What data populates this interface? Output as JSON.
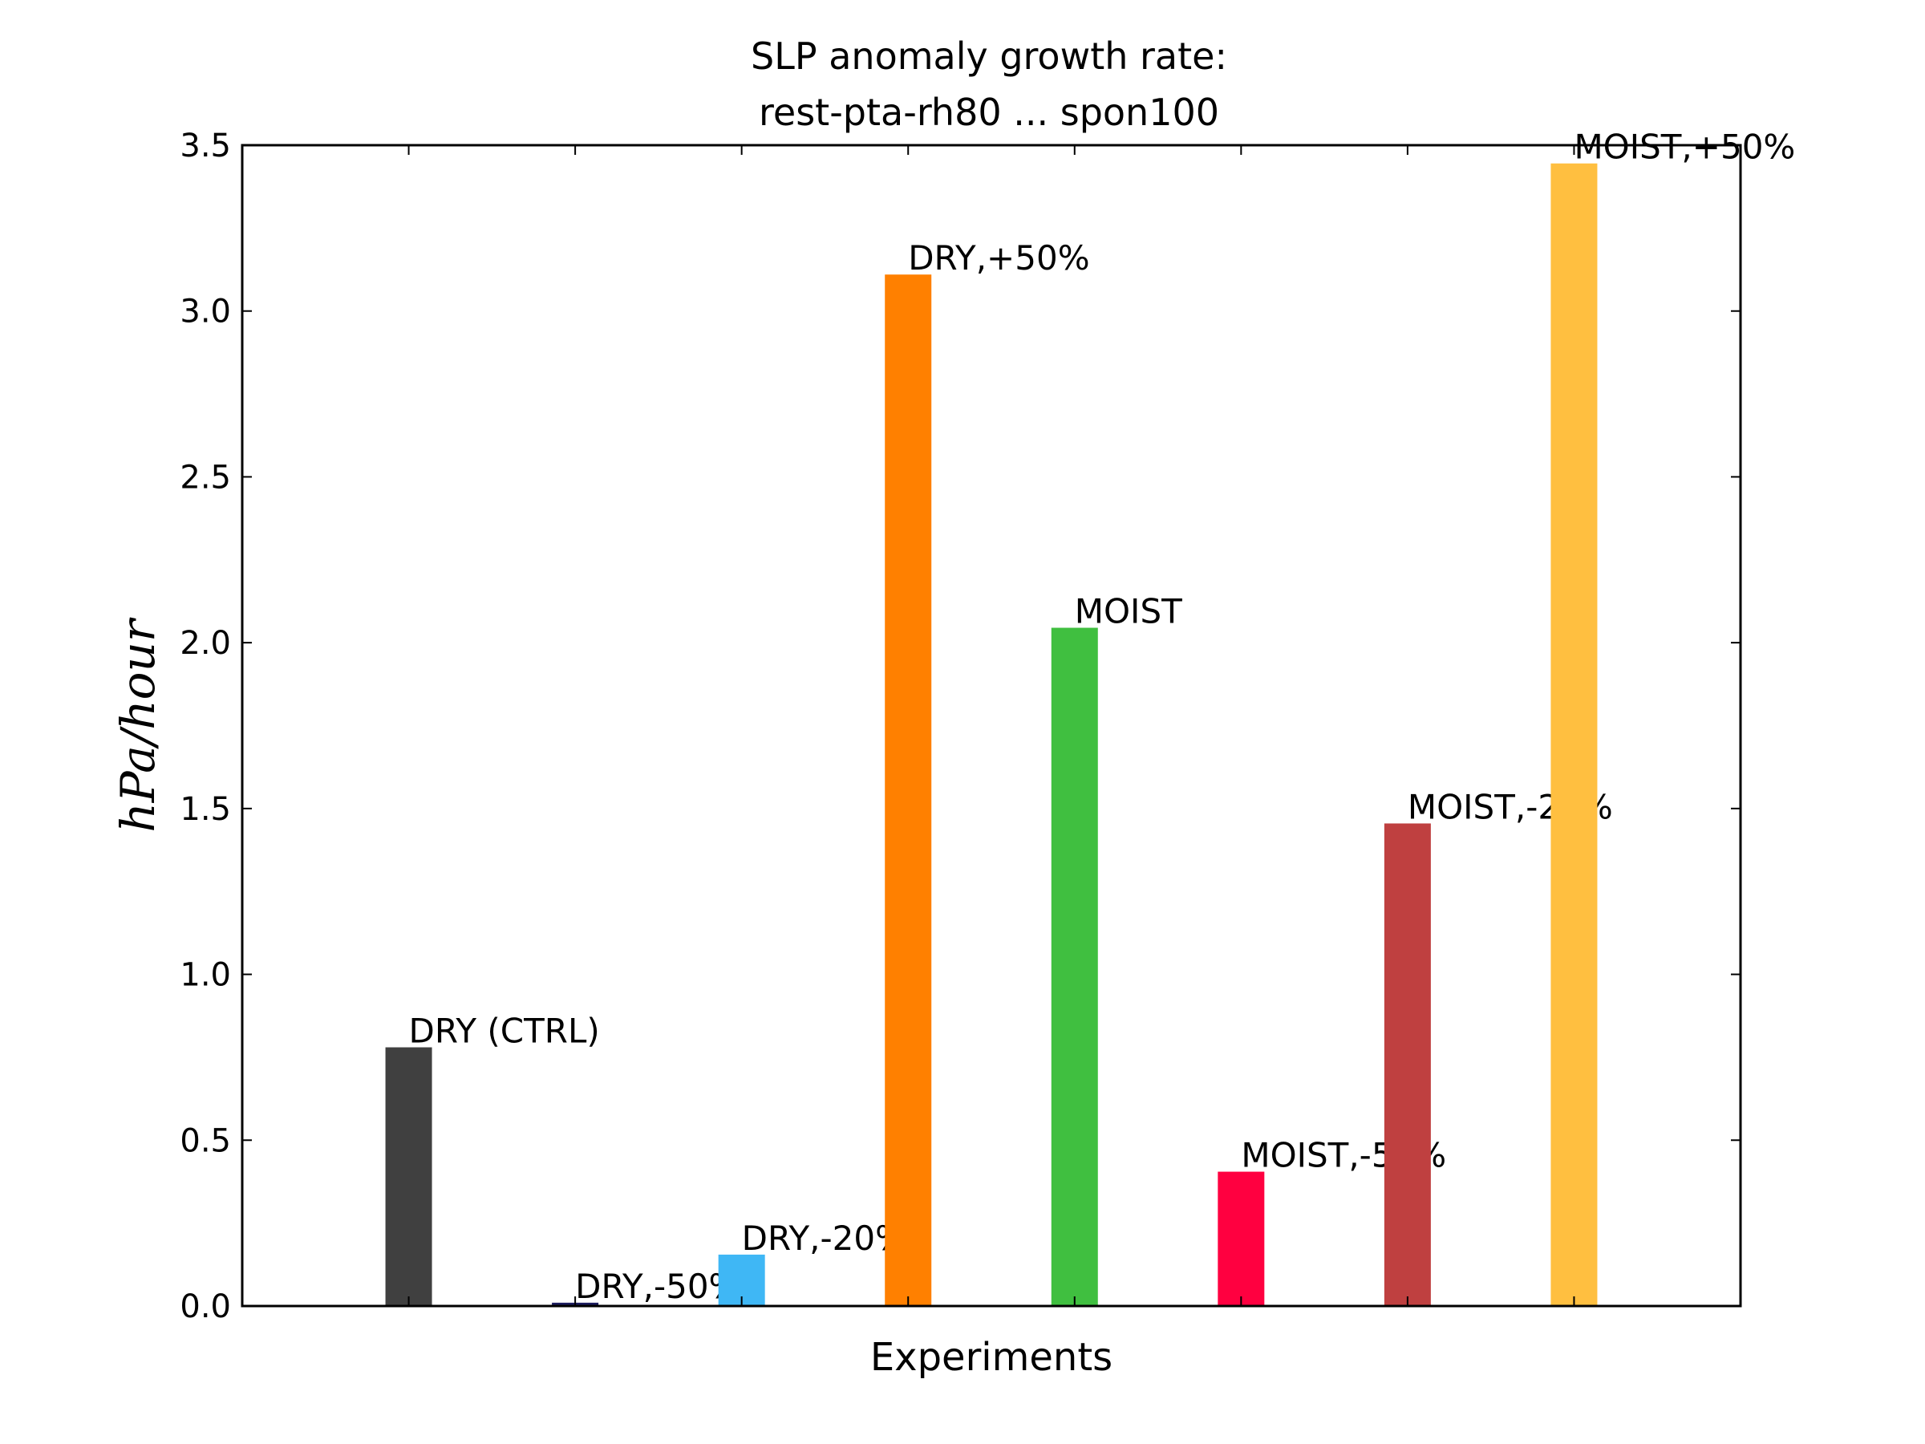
{
  "chart_data": {
    "type": "bar",
    "title_lines": [
      "SLP anomaly growth rate:",
      "rest-pta-rh80 ... spon100"
    ],
    "xlabel": "Experiments",
    "ylabel": "hPa/hour",
    "ylim": [
      0,
      3.5
    ],
    "yticks": [
      "0.0",
      "0.5",
      "1.0",
      "1.5",
      "2.0",
      "2.5",
      "3.0",
      "3.5"
    ],
    "grid": false,
    "x_positions": [
      1,
      2,
      3,
      4,
      5,
      6,
      7,
      8
    ],
    "xlim": [
      0,
      9
    ],
    "bars": [
      {
        "label": "DRY (CTRL)",
        "value": 0.78,
        "color": "#404040"
      },
      {
        "label": "DRY,-50%",
        "value": 0.01,
        "color": "#1c1c5e"
      },
      {
        "label": "DRY,-20%",
        "value": 0.155,
        "color": "#3fb7f5"
      },
      {
        "label": "DRY,+50%",
        "value": 3.11,
        "color": "#ff8000"
      },
      {
        "label": "MOIST",
        "value": 2.045,
        "color": "#40bf40"
      },
      {
        "label": "MOIST,-50%",
        "value": 0.405,
        "color": "#ff0040"
      },
      {
        "label": "MOIST,-20%",
        "value": 1.455,
        "color": "#bf4040"
      },
      {
        "label": "MOIST,+50%",
        "value": 3.445,
        "color": "#ffbf40"
      }
    ]
  }
}
